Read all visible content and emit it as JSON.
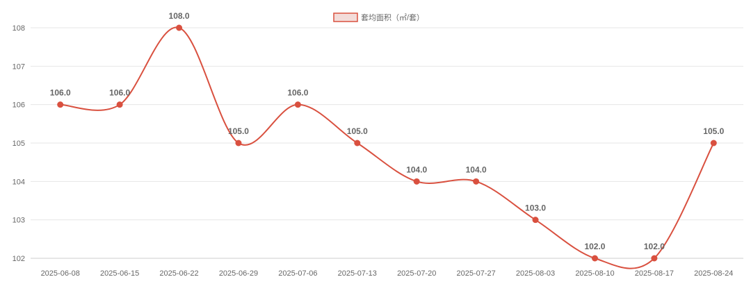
{
  "chart_data": {
    "type": "line",
    "title": "",
    "xlabel": "",
    "ylabel": "",
    "categories": [
      "2025-06-08",
      "2025-06-15",
      "2025-06-22",
      "2025-06-29",
      "2025-07-06",
      "2025-07-13",
      "2025-07-20",
      "2025-07-27",
      "2025-08-03",
      "2025-08-10",
      "2025-08-17",
      "2025-08-24"
    ],
    "series": [
      {
        "name": "套均面积（㎡/套）",
        "values": [
          106.0,
          106.0,
          108.0,
          105.0,
          106.0,
          105.0,
          104.0,
          104.0,
          103.0,
          102.0,
          102.0,
          105.0
        ],
        "data_labels": [
          "106.0",
          "106.0",
          "108.0",
          "105.0",
          "106.0",
          "105.0",
          "104.0",
          "104.0",
          "103.0",
          "102.0",
          "102.0",
          "105.0"
        ],
        "color": "#d9503f"
      }
    ],
    "ylim": [
      102,
      108
    ],
    "yticks": [
      102,
      103,
      104,
      105,
      106,
      107,
      108
    ],
    "grid": true,
    "smooth": true,
    "legend": "top-center",
    "colors": {
      "line": "#d9503f",
      "legend_fill": "#f3dcd9",
      "grid": "#e6e6e6",
      "axis": "#cccccc",
      "text": "#666666"
    }
  }
}
